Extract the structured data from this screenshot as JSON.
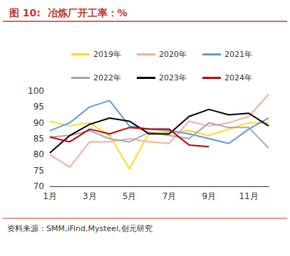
{
  "chart_data": {
    "type": "line",
    "title": "图 10:  冶炼厂开工率：%",
    "source": "资料来源：SMM,iFind,Mysteel,创元研究",
    "categories": [
      "1月",
      null,
      "3月",
      null,
      "5月",
      null,
      "7月",
      null,
      "9月",
      null,
      "11月",
      null
    ],
    "series": [
      {
        "name": "2019年",
        "color": "#FFD82A",
        "values": [
          90.5,
          89,
          90,
          86,
          75.5,
          87,
          87,
          87.5,
          86,
          88,
          90,
          90
        ]
      },
      {
        "name": "2020年",
        "color": "#F4AE9F",
        "values": [
          80,
          76,
          84,
          84,
          85,
          84,
          83.5,
          90.5,
          89,
          90,
          92,
          99
        ]
      },
      {
        "name": "2021年",
        "color": "#5B9BD5",
        "values": [
          87.5,
          90,
          95,
          97,
          89,
          88,
          87.5,
          86.5,
          85,
          83.5,
          88,
          91.5
        ]
      },
      {
        "name": "2022年",
        "color": "#A6A6A6",
        "values": [
          85.5,
          86,
          87.5,
          85,
          84,
          87,
          86,
          85,
          90,
          88.5,
          88.5,
          82
        ]
      },
      {
        "name": "2023年",
        "color": "#000000",
        "values": [
          80.5,
          86,
          89.5,
          91.5,
          90.5,
          86.5,
          86.5,
          92,
          94.2,
          92.5,
          93,
          89
        ]
      },
      {
        "name": "2024年",
        "color": "#C00000",
        "values": [
          85.5,
          84,
          88,
          86.5,
          88.5,
          88,
          88,
          83,
          82.5,
          null,
          null,
          null
        ]
      }
    ],
    "ylim": [
      70,
      100
    ],
    "yticks": [
      70,
      75,
      80,
      85,
      90,
      95,
      100
    ],
    "grid": false,
    "legend": "top"
  }
}
